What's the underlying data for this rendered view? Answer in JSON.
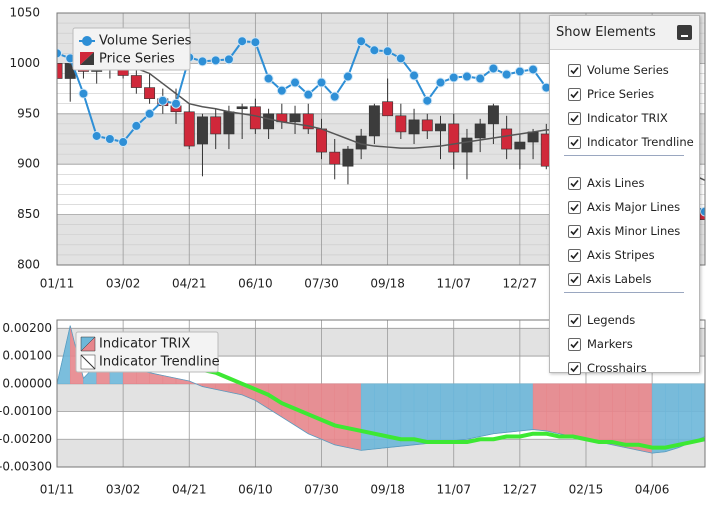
{
  "chart_data": [
    {
      "type": "financial",
      "categories": [
        "01/11",
        null,
        null,
        null,
        null,
        "03/02",
        null,
        null,
        null,
        null,
        "04/21",
        null,
        null,
        null,
        null,
        "06/10",
        null,
        null,
        null,
        null,
        "07/30",
        null,
        null,
        null,
        null,
        "09/18",
        null,
        null,
        null,
        null,
        "11/07",
        null,
        null,
        null,
        null,
        "12/27",
        null,
        null,
        null,
        null,
        "02/15",
        null,
        null,
        null,
        null,
        "04/06",
        null,
        null,
        null,
        null
      ],
      "ylim": [
        800,
        1050
      ],
      "yticks": [
        800,
        850,
        900,
        950,
        1000,
        1050
      ],
      "minor_yticks": [
        810,
        820,
        830,
        840,
        860,
        870,
        880,
        890,
        910,
        920,
        930,
        940,
        960,
        970,
        980,
        990,
        1010,
        1020,
        1030,
        1040
      ],
      "stripes": true,
      "grid": true,
      "series": [
        {
          "name": "Volume Series",
          "color": "#2e8fd6",
          "values": [
            1010,
            1005,
            970,
            928,
            925,
            922,
            938,
            950,
            963,
            960,
            1006,
            1002,
            1003,
            1004,
            1022,
            1021,
            985,
            973,
            981,
            969,
            981,
            967,
            987,
            1022,
            1013,
            1012,
            1005,
            988,
            963,
            981,
            986,
            987,
            985,
            995,
            989,
            992,
            994,
            976,
            980,
            970,
            960,
            950,
            940,
            925,
            910,
            895,
            880,
            870,
            860,
            853
          ]
        },
        {
          "name": "Price Series",
          "up_color": "#3c3c3c",
          "down_color": "#d0283a",
          "open": [
            1000,
            985,
            1000,
            992,
            996,
            1000,
            988,
            976,
            965,
            958,
            952,
            920,
            947,
            930,
            955,
            957,
            935,
            950,
            942,
            950,
            935,
            912,
            898,
            915,
            928,
            962,
            948,
            930,
            944,
            933,
            940,
            912,
            926,
            940,
            935,
            915,
            922,
            930,
            898,
            905,
            920,
            902,
            888,
            875,
            880,
            865,
            850,
            858,
            848,
            852
          ],
          "high": [
            1012,
            1003,
            1010,
            1005,
            1020,
            1010,
            1000,
            990,
            975,
            975,
            960,
            950,
            955,
            958,
            960,
            965,
            955,
            960,
            958,
            960,
            945,
            925,
            918,
            935,
            960,
            985,
            960,
            955,
            950,
            948,
            950,
            935,
            945,
            960,
            948,
            930,
            935,
            940,
            915,
            925,
            930,
            910,
            900,
            885,
            890,
            875,
            865,
            868,
            860,
            862
          ],
          "low": [
            975,
            962,
            985,
            980,
            985,
            985,
            970,
            960,
            950,
            940,
            915,
            888,
            915,
            915,
            925,
            930,
            925,
            935,
            930,
            930,
            905,
            885,
            880,
            905,
            920,
            950,
            925,
            920,
            925,
            905,
            895,
            885,
            912,
            920,
            905,
            895,
            905,
            895,
            885,
            895,
            900,
            880,
            870,
            860,
            860,
            845,
            840,
            845,
            835,
            840
          ],
          "close": [
            985,
            1000,
            992,
            996,
            1003,
            988,
            976,
            965,
            958,
            952,
            918,
            947,
            930,
            952,
            957,
            935,
            950,
            942,
            950,
            935,
            912,
            900,
            915,
            928,
            958,
            948,
            932,
            944,
            933,
            940,
            912,
            926,
            940,
            958,
            915,
            922,
            932,
            898,
            905,
            920,
            902,
            888,
            875,
            880,
            865,
            850,
            858,
            848,
            852,
            845
          ]
        }
      ],
      "trend": {
        "color": "#555555",
        "values": [
          null,
          null,
          null,
          null,
          null,
          null,
          995,
          990,
          980,
          970,
          960,
          957,
          955,
          952,
          950,
          948,
          945,
          942,
          940,
          938,
          935,
          930,
          925,
          920,
          918,
          917,
          916,
          916,
          917,
          918,
          920,
          922,
          924,
          926,
          928,
          930,
          932,
          934,
          934,
          933,
          931,
          928,
          924,
          919,
          914,
          908,
          902,
          896,
          890,
          884
        ]
      }
    },
    {
      "type": "area",
      "categories": [
        "01/11",
        null,
        null,
        null,
        null,
        "03/02",
        null,
        null,
        null,
        null,
        "04/21",
        null,
        null,
        null,
        null,
        "06/10",
        null,
        null,
        null,
        null,
        "07/30",
        null,
        null,
        null,
        null,
        "09/18",
        null,
        null,
        null,
        null,
        "11/07",
        null,
        null,
        null,
        null,
        "12/27",
        null,
        null,
        null,
        null,
        "02/15",
        null,
        null,
        null,
        null,
        "04/06",
        null,
        null,
        null,
        null
      ],
      "ylim": [
        -0.003,
        0.0023
      ],
      "yticks": [
        {
          "value": -0.003,
          "label": "-0.00300"
        },
        {
          "value": -0.002,
          "label": "-0.00200"
        },
        {
          "value": -0.001,
          "label": "-0.00100"
        },
        {
          "value": 0,
          "label": "0.00000"
        },
        {
          "value": 0.001,
          "label": "0.00100"
        },
        {
          "value": 0.002,
          "label": "0.00200"
        }
      ],
      "stripes": true,
      "grid": true,
      "series": [
        {
          "name": "Indicator TRIX",
          "up_color": "#6db7d9",
          "down_color": "#e7868c",
          "values": [
            0,
            0.0021,
            0.0002,
            0.0007,
            0.0006,
            0.0006,
            0.0005,
            0.0004,
            0.0003,
            0.0002,
            0.0001,
            -0.0001,
            -0.0002,
            -0.0003,
            -0.0004,
            -0.0006,
            -0.0009,
            -0.0012,
            -0.0015,
            -0.0018,
            -0.002,
            -0.0022,
            -0.0023,
            -0.0024,
            -0.00235,
            -0.0023,
            -0.00225,
            -0.0022,
            -0.00215,
            -0.0021,
            -0.00205,
            -0.002,
            -0.0019,
            -0.0018,
            -0.00175,
            -0.0017,
            -0.00165,
            -0.0017,
            -0.0018,
            -0.0019,
            -0.002,
            -0.0021,
            -0.0022,
            -0.0023,
            -0.0024,
            -0.0025,
            -0.00245,
            -0.0023,
            -0.0021,
            -0.0019
          ]
        },
        {
          "name": "Indicator Trendline",
          "color": "#3de833",
          "values": [
            null,
            null,
            null,
            null,
            null,
            null,
            null,
            null,
            null,
            null,
            0.0005,
            0.0005,
            0.0004,
            0.0002,
            0,
            -0.0002,
            -0.0004,
            -0.0007,
            -0.0009,
            -0.0011,
            -0.0013,
            -0.0015,
            -0.0016,
            -0.0017,
            -0.0018,
            -0.0019,
            -0.002,
            -0.002,
            -0.0021,
            -0.0021,
            -0.0021,
            -0.0021,
            -0.002,
            -0.002,
            -0.0019,
            -0.0019,
            -0.0018,
            -0.0018,
            -0.0019,
            -0.0019,
            -0.002,
            -0.0021,
            -0.0021,
            -0.0022,
            -0.0022,
            -0.0023,
            -0.0023,
            -0.0022,
            -0.0021,
            -0.002
          ]
        }
      ]
    }
  ],
  "panel": {
    "title": "Show Elements",
    "groups": [
      [
        {
          "label": "Volume Series",
          "checked": true
        },
        {
          "label": "Price Series",
          "checked": true
        },
        {
          "label": "Indicator TRIX",
          "checked": true
        },
        {
          "label": "Indicator Trendline",
          "checked": true
        }
      ],
      [
        {
          "label": "Axis Lines",
          "checked": true
        },
        {
          "label": "Axis Major Lines",
          "checked": true
        },
        {
          "label": "Axis Minor Lines",
          "checked": true
        },
        {
          "label": "Axis Stripes",
          "checked": true
        },
        {
          "label": "Axis Labels",
          "checked": true
        }
      ],
      [
        {
          "label": "Legends",
          "checked": true
        },
        {
          "label": "Markers",
          "checked": true
        },
        {
          "label": "Crosshairs",
          "checked": true
        }
      ]
    ]
  }
}
